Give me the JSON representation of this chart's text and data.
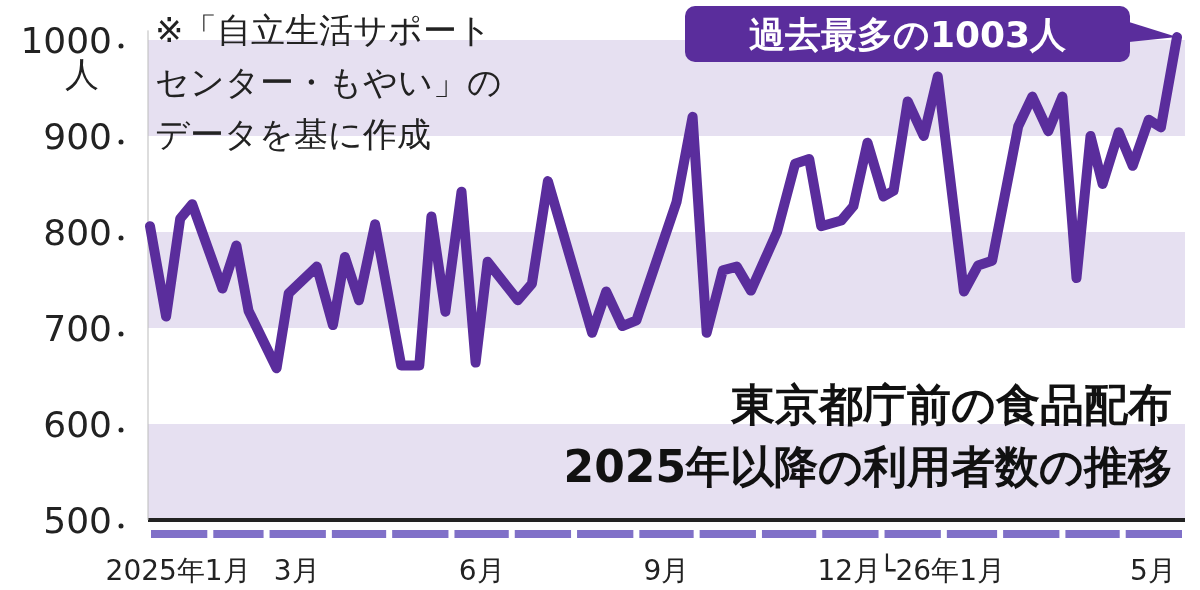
{
  "chart_data": {
    "type": "line",
    "title": "東京都庁前の食品配布",
    "subtitle": "2025年以降の利用者数の推移",
    "ylabel": "人",
    "annotations": [
      "※「自立生活サポートセンター・もやい」のデータを基に作成",
      "過去最多の1003人"
    ],
    "x": [
      "2025-01-02",
      "2025-01-10",
      "2025-01-17",
      "2025-01-23",
      "2025-02-07",
      "2025-02-14",
      "2025-02-20",
      "2025-03-06",
      "2025-03-12",
      "2025-03-26",
      "2025-04-03",
      "2025-04-09",
      "2025-04-16",
      "2025-04-24",
      "2025-05-07",
      "2025-05-16",
      "2025-05-22",
      "2025-05-29",
      "2025-06-06",
      "2025-06-13",
      "2025-06-19",
      "2025-07-04",
      "2025-07-11",
      "2025-07-19",
      "2025-08-10",
      "2025-08-17",
      "2025-08-25",
      "2025-09-01",
      "2025-09-21",
      "2025-09-29",
      "2025-10-06",
      "2025-10-14",
      "2025-10-21",
      "2025-10-28",
      "2025-11-10",
      "2025-11-19",
      "2025-11-26",
      "2025-12-02",
      "2025-12-12",
      "2025-12-18",
      "2025-12-25",
      "2026-01-02",
      "2026-01-07",
      "2026-01-14",
      "2026-01-22",
      "2026-01-29",
      "2026-02-11",
      "2026-02-18",
      "2026-02-25",
      "2026-03-10",
      "2026-03-17",
      "2026-03-25",
      "2026-04-01",
      "2026-04-08",
      "2026-04-15",
      "2026-04-21",
      "2026-04-29",
      "2026-05-06",
      "2026-05-14",
      "2026-05-20",
      "2026-05-28"
    ],
    "series": [
      {
        "color": "#5a2d9c",
        "values": [
          806,
          712,
          814,
          829,
          741,
          786,
          718,
          658,
          736,
          764,
          703,
          774,
          729,
          808,
          661,
          661,
          816,
          717,
          842,
          664,
          769,
          729,
          746,
          853,
          695,
          738,
          702,
          708,
          831,
          920,
          695,
          760,
          764,
          739,
          800,
          871,
          876,
          806,
          812,
          827,
          893,
          837,
          843,
          936,
          900,
          962,
          738,
          765,
          770,
          910,
          941,
          905,
          941,
          752,
          900,
          850,
          904,
          869,
          917,
          909,
          1003
        ]
      }
    ],
    "xlim": [
      "2025-01-01",
      "2026-06-01"
    ],
    "xticks": [
      {
        "value": "2025-01-16",
        "label": "2025年1月"
      },
      {
        "value": "2025-03-16",
        "label": "3月"
      },
      {
        "value": "2025-06-16",
        "label": "6月"
      },
      {
        "value": "2025-09-16",
        "label": "9月"
      },
      {
        "value": "2025-12-16",
        "label": "12月"
      },
      {
        "value": "2026-01-31",
        "label": "└26年1月"
      },
      {
        "value": "2026-05-16",
        "label": "5月"
      }
    ],
    "ylim": [
      500,
      1010
    ],
    "yticks": [
      500,
      600,
      700,
      800,
      900,
      1000
    ],
    "bands": [
      {
        "axis": "y",
        "from": 500,
        "to": 600,
        "color": "#e6e0f1"
      },
      {
        "axis": "y",
        "from": 700,
        "to": 800,
        "color": "#e6e0f1"
      },
      {
        "axis": "y",
        "from": 900,
        "to": 1000,
        "color": "#e6e0f1"
      }
    ],
    "line_style": "solid",
    "marker": "none"
  }
}
